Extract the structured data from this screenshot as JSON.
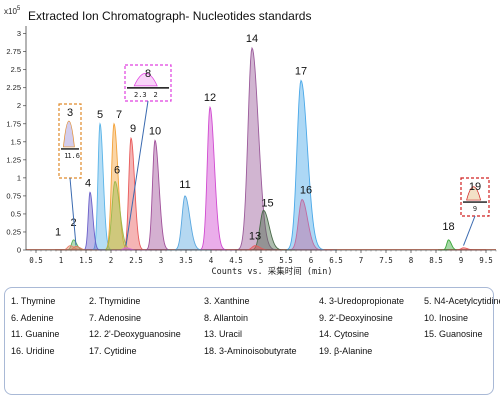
{
  "chart_data": {
    "type": "line",
    "title": "Extracted Ion Chromatograph- Nucleotides standards",
    "y_multiplier": "x10",
    "y_multiplier_exp": "5",
    "xlabel": "Counts vs. 采集时间 (min)",
    "xlim": [
      0.3,
      9.7
    ],
    "ylim": [
      0,
      3.05
    ],
    "x_ticks": [
      "0.5",
      "1",
      "1.5",
      "2",
      "2.5",
      "3",
      "3.5",
      "4",
      "4.5",
      "5",
      "5.5",
      "6",
      "6.5",
      "7",
      "7.5",
      "8",
      "8.5",
      "9",
      "9.5"
    ],
    "y_ticks": [
      "3",
      "2.75",
      "2.5",
      "2.25",
      "2",
      "1.75",
      "1.5",
      "1.25",
      "1",
      "0.75",
      "0.5",
      "0.25",
      "0"
    ],
    "peaks": [
      {
        "id": "1",
        "rt": 1.18,
        "height": 0.06,
        "width": 0.05,
        "color": "#e8836b"
      },
      {
        "id": "2",
        "rt": 1.25,
        "height": 0.14,
        "width": 0.04,
        "color": "#59b05b"
      },
      {
        "id": "3",
        "rt": 1.3,
        "height": 0.05,
        "width": 0.05,
        "color": "#e07a5f"
      },
      {
        "id": "4",
        "rt": 1.58,
        "height": 0.8,
        "width": 0.035,
        "color": "#6a5fc8"
      },
      {
        "id": "5",
        "rt": 1.78,
        "height": 1.75,
        "width": 0.04,
        "color": "#5ab4e8"
      },
      {
        "id": "6",
        "rt": 2.08,
        "height": 0.95,
        "width": 0.06,
        "color": "#9bb84a"
      },
      {
        "id": "7",
        "rt": 2.06,
        "height": 1.75,
        "width": 0.05,
        "color": "#f3a23a"
      },
      {
        "id": "8",
        "rt": 2.3,
        "height": 0.03,
        "width": 0.05,
        "color": "#e066e0"
      },
      {
        "id": "9",
        "rt": 2.4,
        "height": 1.55,
        "width": 0.045,
        "color": "#e85a5a"
      },
      {
        "id": "10",
        "rt": 2.88,
        "height": 1.52,
        "width": 0.05,
        "color": "#a0509a"
      },
      {
        "id": "11",
        "rt": 3.48,
        "height": 0.75,
        "width": 0.06,
        "color": "#5aa8e0"
      },
      {
        "id": "12",
        "rt": 3.98,
        "height": 1.98,
        "width": 0.055,
        "color": "#d04ad0"
      },
      {
        "id": "13",
        "rt": 4.88,
        "height": 0.06,
        "width": 0.06,
        "color": "#e85a5a"
      },
      {
        "id": "14",
        "rt": 4.82,
        "height": 2.8,
        "width": 0.08,
        "color": "#9a5a9a"
      },
      {
        "id": "15",
        "rt": 5.05,
        "height": 0.55,
        "width": 0.07,
        "color": "#4a6a4a"
      },
      {
        "id": "16",
        "rt": 5.82,
        "height": 0.7,
        "width": 0.07,
        "color": "#c06aa0"
      },
      {
        "id": "17",
        "rt": 5.8,
        "height": 2.35,
        "width": 0.08,
        "color": "#4aa8e8"
      },
      {
        "id": "18",
        "rt": 8.75,
        "height": 0.14,
        "width": 0.035,
        "color": "#3aa83a"
      },
      {
        "id": "19",
        "rt": 9.05,
        "height": 0.03,
        "width": 0.05,
        "color": "#e85a5a"
      }
    ],
    "insets": [
      {
        "peak": "3",
        "labels": [
          "1",
          "1.6"
        ]
      },
      {
        "peak": "8",
        "labels": [
          "2.3",
          "2"
        ]
      },
      {
        "peak": "19",
        "labels": [
          "9"
        ]
      }
    ]
  },
  "legend": {
    "items": [
      "1. Thymine",
      "2. Thymidine",
      "3. Xanthine",
      "4. 3-Uredopropionate",
      "5. N4-Acetylcytidine",
      "6. Adenine",
      "7. Adenosine",
      "8. Allantoin",
      "9. 2'-Deoxyinosine",
      "10. Inosine",
      "11. Guanine",
      "12. 2'-Deoxyguanosine",
      "13. Uracil",
      "14. Cytosine",
      "15. Guanosine",
      "16. Uridine",
      "17. Cytidine",
      "18. 3-Aminoisobutyrate",
      "19. β-Alanine",
      ""
    ]
  },
  "colors": {
    "axis": "#444444",
    "inset_orange": "#e08a2a",
    "inset_magenta": "#e040e0",
    "inset_red": "#d02020",
    "arrow": "#3a6ab0"
  }
}
